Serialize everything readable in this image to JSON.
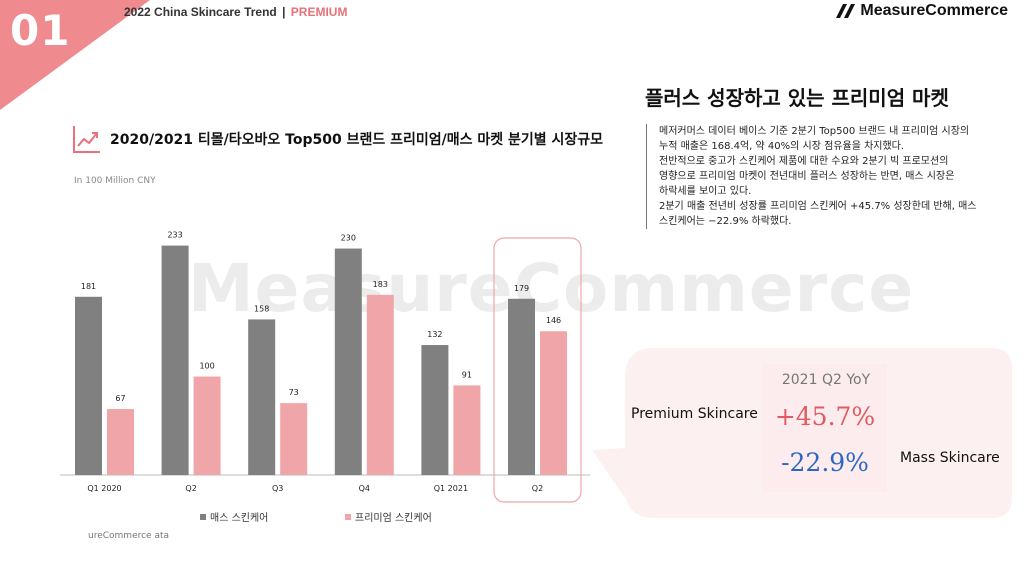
{
  "header": {
    "page_number": "01",
    "report_title": "2022 China Skincare Trend",
    "report_sep": "|",
    "report_tag": "PREMIUM",
    "brand_name": "MeasureCommerce"
  },
  "watermark": "MeasureCommerce",
  "summary": {
    "headline": "플러스 성장하고 있는 프리미엄 마켓",
    "lines": [
      "메저커머스 데이터 베이스 기준 2분기 Top500 브랜드 내 프리미엄 시장의",
      "누적 매출은 168.4억, 약 40%의 시장 점유율을 차지했다.",
      "전반적으로 중고가 스킨케어 제품에 대한 수요와 2분기 빅 프로모션의",
      "영향으로 프리미엄 마켓이 전년대비 플러스 성장하는 반면, 매스 시장은",
      "하락세를 보이고 있다.",
      "2분기 매출 전년비 성장률 프리미엄 스킨케어 +45.7% 성장한데 반해, 매스",
      "스킨케어는 −22.9% 하락했다."
    ]
  },
  "chart_data": {
    "type": "bar",
    "title": "2020/2021 티몰/타오바오 Top500 브랜드 프리미엄/매스 마켓 분기별  시장규모",
    "unit_label": "In 100 Million CNY",
    "categories": [
      "Q1 2020",
      "Q2",
      "Q3",
      "Q4",
      "Q1 2021",
      "Q2"
    ],
    "series": [
      {
        "name": "매스 스킨케어",
        "color": "#808080",
        "values": [
          181,
          233,
          158,
          230,
          132,
          179
        ]
      },
      {
        "name": "프리미엄 스킨케어",
        "color": "#f0a5a8",
        "values": [
          67,
          100,
          73,
          183,
          91,
          146
        ]
      }
    ],
    "ylim": [
      0,
      260
    ],
    "highlight_category_index": 5,
    "legend_position": "bottom",
    "grid": false
  },
  "source_note": "ureCommerce    ata",
  "callout": {
    "title": "2021 Q2 YoY",
    "premium_label": "Premium Skincare",
    "premium_value": "+45.7%",
    "mass_label": "Mass Skincare",
    "mass_value": "-22.9%",
    "premium_color": "#e05a64",
    "mass_color": "#2d67c3"
  }
}
